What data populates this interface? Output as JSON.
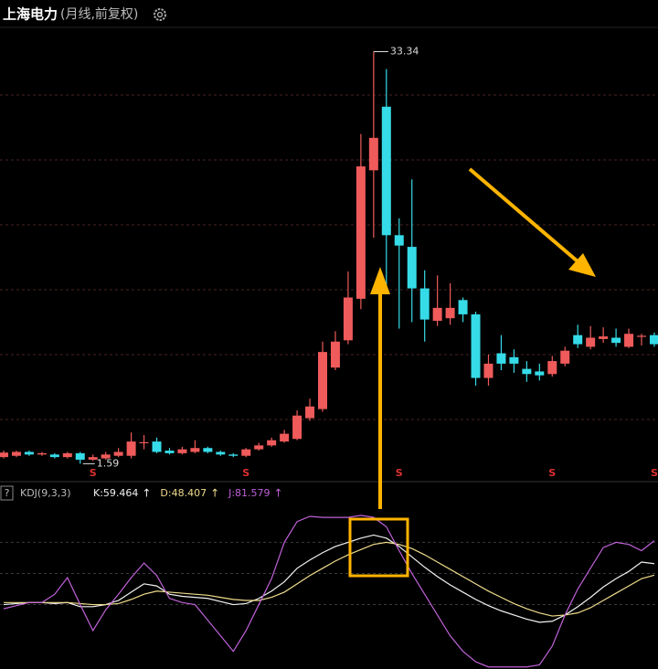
{
  "chart_data": [
    {
      "type": "candlestick",
      "title": "上海电力",
      "subtitle": "(月线,前复权)",
      "up_color": "#ef5a5a",
      "down_color": "#36dbe8",
      "open": [
        2.1,
        2.2,
        2.5,
        2.3,
        2.3,
        2.1,
        2.4,
        1.9,
        2.0,
        2.2,
        2.2,
        3.2,
        3.3,
        2.6,
        2.4,
        2.5,
        2.8,
        2.5,
        2.3,
        2.2,
        2.7,
        3.0,
        3.3,
        3.5,
        5.1,
        5.8,
        9.0,
        11.1,
        14.3,
        24.2,
        29.1,
        19.2,
        18.3,
        15.1,
        12.6,
        12.8,
        14.2,
        13.1,
        8.2,
        10.1,
        9.8,
        8.9,
        8.7,
        8.5,
        9.3,
        11.5,
        10.6,
        11.2,
        11.3,
        10.6,
        11.4,
        11.5
      ],
      "high": [
        2.6,
        2.6,
        2.6,
        2.5,
        2.4,
        2.5,
        2.5,
        2.3,
        2.5,
        2.8,
        4.0,
        3.8,
        3.6,
        2.8,
        2.9,
        3.4,
        2.9,
        2.6,
        2.4,
        2.8,
        3.2,
        3.6,
        4.2,
        5.7,
        6.6,
        11.0,
        11.8,
        16.4,
        27.0,
        33.34,
        32.0,
        20.5,
        23.5,
        16.5,
        16.1,
        15.5,
        14.4,
        13.3,
        10.0,
        11.5,
        10.4,
        9.5,
        9.3,
        9.9,
        10.6,
        12.3,
        12.2,
        12.1,
        12.0,
        12.0,
        11.6,
        11.7
      ],
      "low": [
        2.0,
        2.1,
        2.2,
        2.2,
        2.0,
        2.0,
        1.59,
        1.8,
        1.9,
        2.1,
        2.0,
        2.7,
        2.4,
        2.3,
        2.3,
        2.4,
        2.4,
        2.2,
        2.1,
        2.1,
        2.6,
        2.9,
        3.2,
        3.4,
        4.9,
        5.6,
        8.8,
        10.8,
        13.5,
        19.0,
        15.0,
        12.0,
        12.5,
        11.0,
        12.2,
        12.3,
        12.5,
        7.6,
        7.6,
        8.8,
        8.6,
        7.9,
        8.0,
        8.3,
        9.1,
        10.5,
        10.4,
        10.9,
        10.6,
        10.5,
        10.7,
        10.6
      ],
      "close": [
        2.45,
        2.5,
        2.3,
        2.4,
        2.1,
        2.4,
        1.9,
        2.1,
        2.3,
        2.5,
        3.3,
        3.25,
        2.5,
        2.4,
        2.7,
        2.8,
        2.5,
        2.3,
        2.2,
        2.7,
        3.0,
        3.4,
        3.9,
        5.3,
        6.0,
        10.2,
        11.0,
        14.4,
        24.5,
        26.7,
        19.2,
        18.4,
        15.1,
        12.7,
        13.6,
        13.6,
        13.1,
        8.2,
        9.3,
        9.3,
        9.3,
        8.5,
        8.4,
        9.5,
        10.3,
        10.8,
        11.3,
        11.4,
        10.9,
        11.6,
        11.45,
        10.8
      ],
      "ylim": [
        0.35,
        35.35
      ],
      "yticks": [
        5,
        10,
        15,
        20,
        25,
        30
      ],
      "grid": true,
      "high_label": "33.34",
      "low_label": "1.59",
      "markers": {
        "label": "S",
        "indices": [
          7,
          19,
          31,
          43,
          51
        ]
      }
    },
    {
      "type": "line",
      "title": "KDJ(9,3,3)",
      "help": "?",
      "ylim": [
        -42,
        127
      ],
      "yticks": [
        20,
        50,
        80
      ],
      "grid": true,
      "series": [
        {
          "name": "K:59.464",
          "arrow": "↑",
          "color": "#f2f2f2",
          "values": [
            20,
            21,
            22,
            22,
            21,
            22,
            18,
            18,
            20,
            24,
            32,
            40,
            38,
            30,
            28,
            27,
            26,
            23,
            20,
            21,
            26,
            33,
            42,
            55,
            63,
            70,
            76,
            80,
            84,
            87,
            84,
            76,
            66,
            56,
            47,
            39,
            32,
            25,
            19,
            14,
            10,
            6,
            3,
            4,
            10,
            18,
            27,
            37,
            45,
            52,
            61,
            59.464
          ]
        },
        {
          "name": "D:48.407",
          "arrow": "↑",
          "color": "#f0dc8c",
          "values": [
            22,
            22,
            22,
            22,
            22,
            22,
            21,
            20,
            20,
            21,
            25,
            30,
            33,
            32,
            31,
            30,
            29,
            27,
            25,
            24,
            24,
            27,
            32,
            40,
            48,
            55,
            62,
            68,
            73,
            78,
            80,
            78,
            74,
            68,
            61,
            54,
            47,
            40,
            33,
            27,
            21,
            16,
            12,
            9,
            10,
            12,
            17,
            24,
            31,
            38,
            45,
            48.407
          ]
        },
        {
          "name": "J:81.579",
          "arrow": "↑",
          "color": "#c062d8",
          "values": [
            16,
            19,
            22,
            22,
            30,
            46,
            20,
            -5,
            15,
            30,
            46,
            60,
            48,
            26,
            22,
            20,
            5,
            -10,
            -25,
            -5,
            20,
            45,
            80,
            100,
            105,
            104,
            104,
            104,
            106,
            104,
            95,
            72,
            50,
            30,
            10,
            -10,
            -25,
            -35,
            -40,
            -40,
            -40,
            -40,
            -38,
            -20,
            10,
            35,
            55,
            75,
            80,
            78,
            72,
            81.579
          ]
        }
      ]
    }
  ]
}
